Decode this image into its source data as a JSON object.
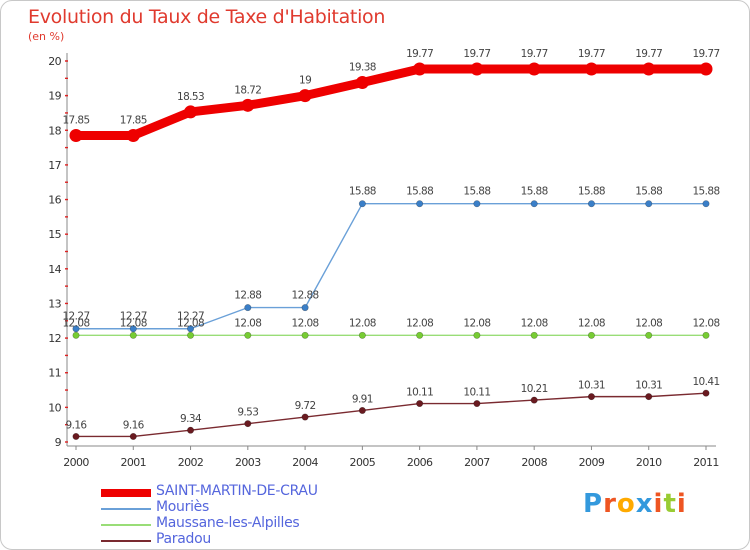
{
  "chart_data": {
    "type": "line",
    "title": "Evolution du Taux de Taxe d'Habitation",
    "subtitle": "(en %)",
    "x": [
      "2000",
      "2001",
      "2002",
      "2003",
      "2004",
      "2005",
      "2006",
      "2007",
      "2008",
      "2009",
      "2010",
      "2011"
    ],
    "ylim": [
      9,
      20
    ],
    "yticks": [
      "9",
      "10",
      "11",
      "12",
      "13",
      "14",
      "15",
      "16",
      "17",
      "18",
      "19",
      "20"
    ],
    "grid": false,
    "legend_position": "bottom-left",
    "series": [
      {
        "name": "SAINT-MARTIN-DE-CRAU",
        "color": "#ee0000",
        "values": [
          17.85,
          17.85,
          18.53,
          18.72,
          19,
          19.38,
          19.77,
          19.77,
          19.77,
          19.77,
          19.77,
          19.77
        ],
        "labels": [
          "17.85",
          "17.85",
          "18.53",
          "18.72",
          "19",
          "19.38",
          "19.77",
          "19.77",
          "19.77",
          "19.77",
          "19.77",
          "19.77"
        ]
      },
      {
        "name": "Mouriès",
        "color": "#6aa0d8",
        "marker": "#3a7fc8",
        "values": [
          12.27,
          12.27,
          12.27,
          12.88,
          12.88,
          15.88,
          15.88,
          15.88,
          15.88,
          15.88,
          15.88,
          15.88
        ],
        "labels": [
          "12.27",
          "12.27",
          "12.27",
          "12.88",
          "12.88",
          "15.88",
          "15.88",
          "15.88",
          "15.88",
          "15.88",
          "15.88",
          "15.88"
        ]
      },
      {
        "name": "Maussane-les-Alpilles",
        "color": "#99dd77",
        "marker": "#77cc33",
        "values": [
          12.08,
          12.08,
          12.08,
          12.08,
          12.08,
          12.08,
          12.08,
          12.08,
          12.08,
          12.08,
          12.08,
          12.08
        ],
        "labels": [
          "12.08",
          "12.08",
          "12.08",
          "12.08",
          "12.08",
          "12.08",
          "12.08",
          "12.08",
          "12.08",
          "12.08",
          "12.08",
          "12.08"
        ]
      },
      {
        "name": "Paradou",
        "color": "#7a2a30",
        "marker": "#6a1a20",
        "values": [
          9.16,
          9.16,
          9.34,
          9.53,
          9.72,
          9.91,
          10.11,
          10.11,
          10.21,
          10.31,
          10.31,
          10.41
        ],
        "labels": [
          "9.16",
          "9.16",
          "9.34",
          "9.53",
          "9.72",
          "9.91",
          "10.11",
          "10.11",
          "10.21",
          "10.31",
          "10.31",
          "10.41"
        ]
      }
    ]
  },
  "brand": {
    "text": "Proxiti",
    "letters": [
      "P",
      "r",
      "o",
      "x",
      "i",
      "t",
      "i"
    ],
    "colors": [
      "#3399dd",
      "#ee5522",
      "#ffaa00",
      "#3399dd",
      "#ee5522",
      "#99cc33",
      "#ee5522"
    ]
  }
}
